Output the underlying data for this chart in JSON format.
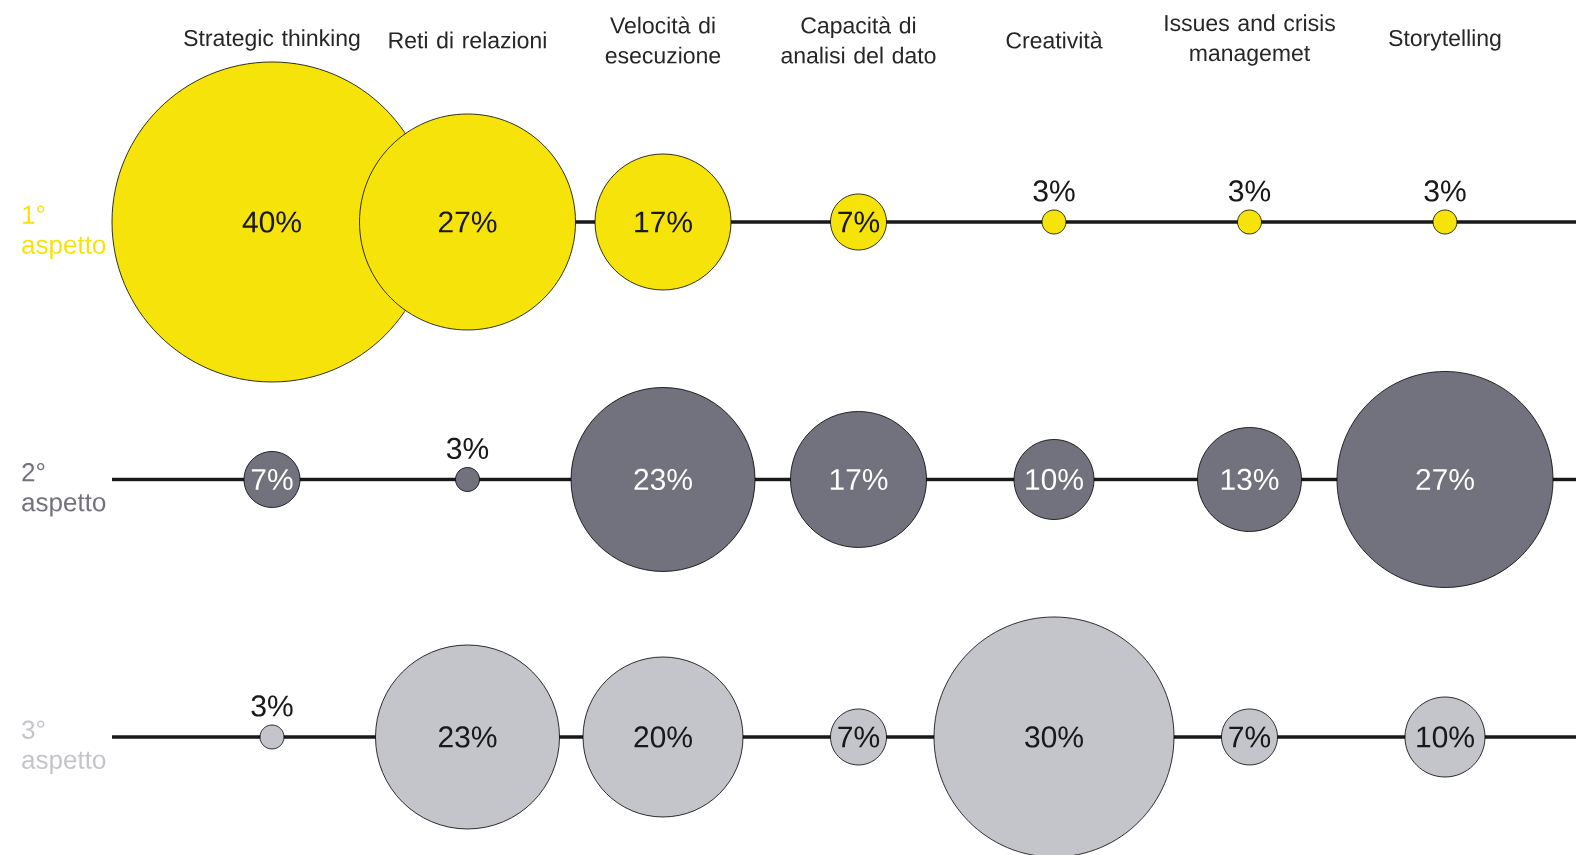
{
  "chart_data": {
    "type": "other",
    "categories": [
      "Strategic thinking",
      "Reti di relazioni",
      "Velocità di esecuzione",
      "Capacità di analisi del dato",
      "Creatività",
      "Issues and crisis managemet",
      "Storytelling"
    ],
    "series": [
      {
        "name": "1° aspetto",
        "color": "#f6e30a",
        "values": [
          40,
          27,
          17,
          7,
          3,
          3,
          3
        ],
        "value_labels": [
          "40%",
          "27%",
          "17%",
          "7%",
          "3%",
          "3%",
          "3%"
        ]
      },
      {
        "name": "2° aspetto",
        "color": "#72727e",
        "values": [
          7,
          3,
          23,
          17,
          10,
          13,
          27
        ],
        "value_labels": [
          "7%",
          "3%",
          "23%",
          "17%",
          "10%",
          "13%",
          "27%"
        ]
      },
      {
        "name": "3° aspetto",
        "color": "#c4c4cb",
        "values": [
          3,
          23,
          20,
          7,
          30,
          7,
          10
        ],
        "value_labels": [
          "3%",
          "23%",
          "20%",
          "7%",
          "30%",
          "7%",
          "10%"
        ]
      }
    ]
  }
}
